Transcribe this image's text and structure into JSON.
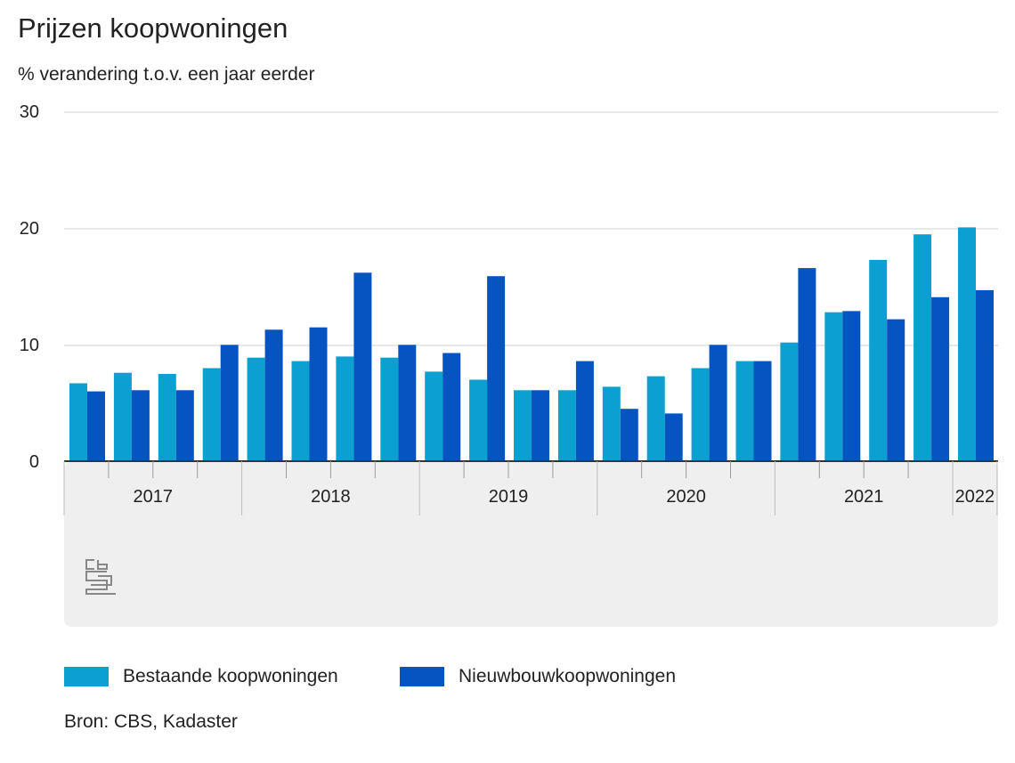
{
  "title": "Prijzen koopwoningen",
  "subtitle": "% verandering t.o.v. een jaar eerder",
  "source": "Bron: CBS, Kadaster",
  "colors": {
    "bestaande": "#0ba0cf",
    "nieuwbouw": "#0554bf",
    "grid": "#d0d0d0",
    "axis_panel": "#efefef"
  },
  "logo": {
    "icon": "cbs-logo-icon",
    "text": "cbs"
  },
  "chart_data": {
    "type": "bar",
    "ylim": [
      0,
      30
    ],
    "yticks": [
      "0",
      "10",
      "20",
      "30"
    ],
    "categories": [
      "2017 Q1",
      "2017 Q2",
      "2017 Q3",
      "2017 Q4",
      "2018 Q1",
      "2018 Q2",
      "2018 Q3",
      "2018 Q4",
      "2019 Q1",
      "2019 Q2",
      "2019 Q3",
      "2019 Q4",
      "2020 Q1",
      "2020 Q2",
      "2020 Q3",
      "2020 Q4",
      "2021 Q1",
      "2021 Q2",
      "2021 Q3",
      "2021 Q4",
      "2022 Q1"
    ],
    "year_labels": [
      "2017",
      "2018",
      "2019",
      "2020",
      "2021",
      "2022"
    ],
    "series": [
      {
        "name": "Bestaande koopwoningen",
        "values": [
          6.7,
          7.6,
          7.5,
          8.0,
          8.9,
          8.6,
          9.0,
          8.9,
          7.7,
          7.0,
          6.1,
          6.1,
          6.4,
          7.3,
          8.0,
          8.6,
          10.2,
          12.8,
          17.3,
          19.5,
          20.1
        ]
      },
      {
        "name": "Nieuwbouwkoopwoningen",
        "values": [
          6.0,
          6.1,
          6.1,
          10.0,
          11.3,
          11.5,
          16.2,
          10.0,
          9.3,
          15.9,
          6.1,
          8.6,
          4.5,
          4.1,
          10.0,
          8.6,
          16.6,
          12.9,
          12.2,
          14.1,
          14.7
        ]
      }
    ]
  }
}
